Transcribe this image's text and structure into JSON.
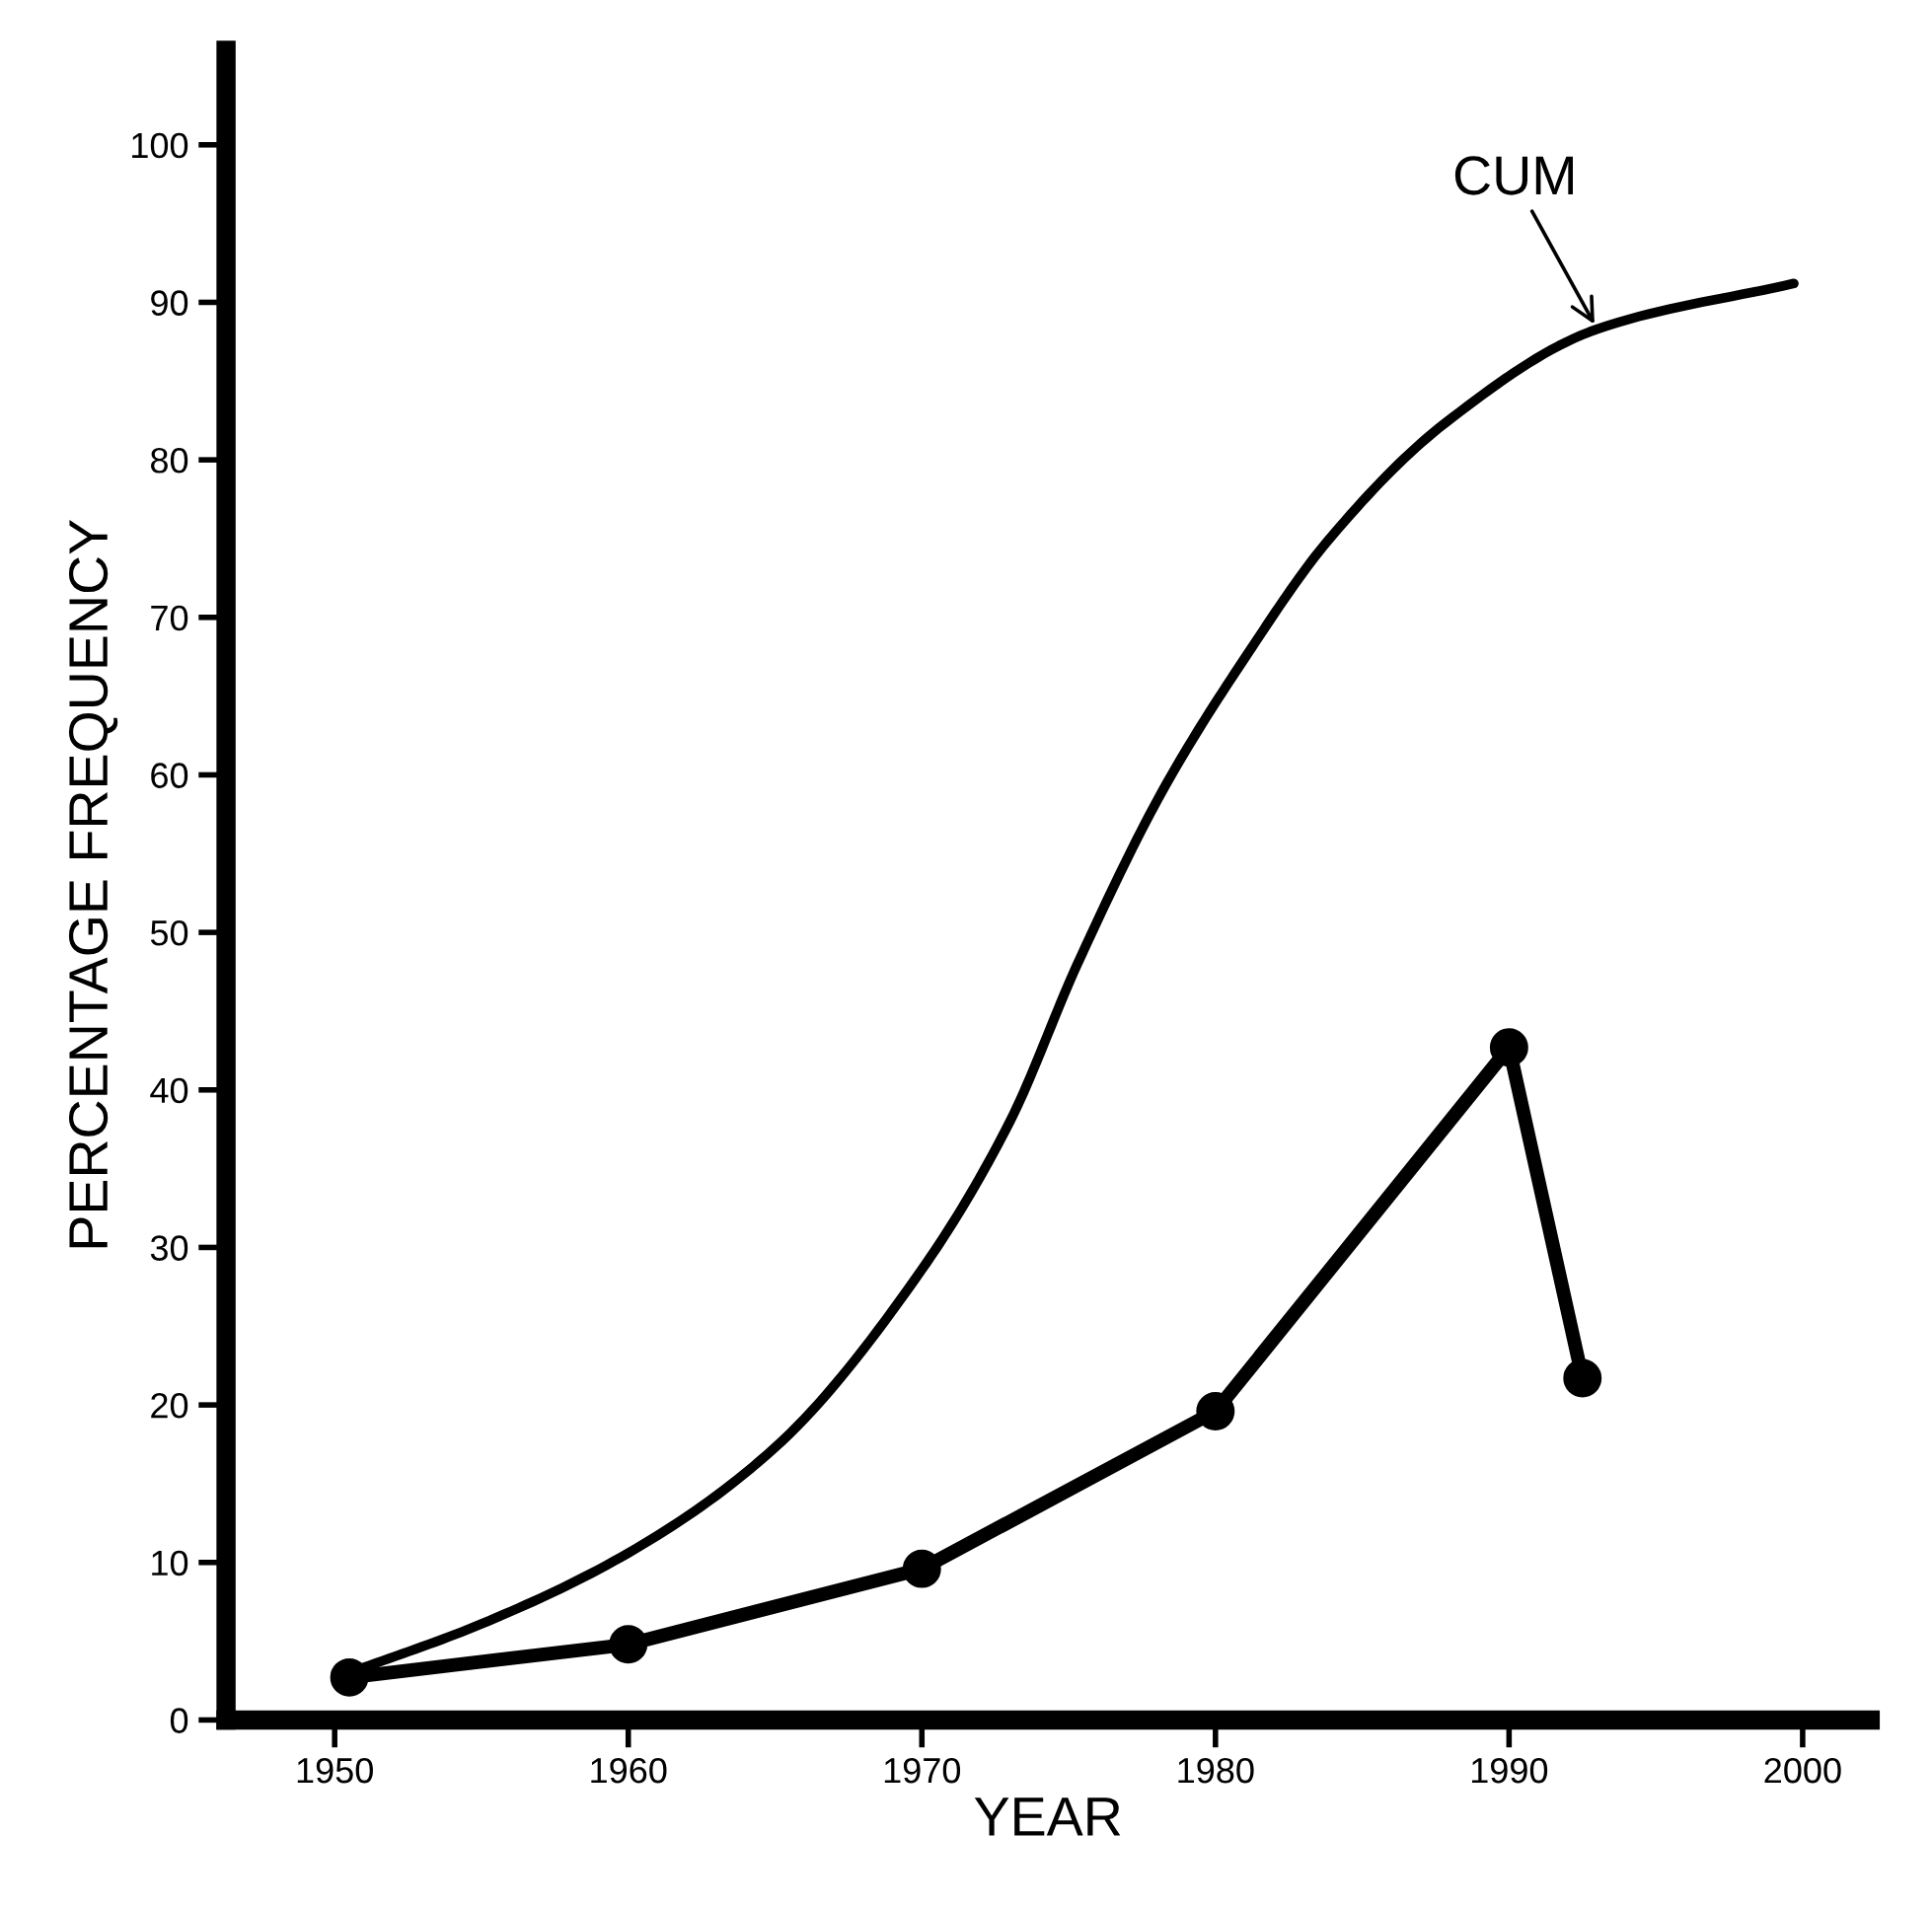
{
  "chart_data": {
    "type": "line",
    "xlabel": "YEAR",
    "ylabel": "PERCENTAGE FREQUENCY",
    "xlim": [
      1946.3,
      2002.3
    ],
    "ylim": [
      0,
      106
    ],
    "xticks": [
      1950,
      1960,
      1970,
      1980,
      1990,
      2000
    ],
    "yticks": [
      0,
      10,
      20,
      30,
      40,
      50,
      60,
      70,
      80,
      90,
      100
    ],
    "grid": false,
    "legend": false,
    "series": [
      {
        "color": "#000000",
        "marker": "none",
        "x": [
          1950.5,
          1955,
          1960,
          1965,
          1970,
          1973,
          1975.3,
          1978.2,
          1981.1,
          1983.8,
          1987.8,
          1993,
          1999.7
        ],
        "values": [
          3,
          6.1,
          10.6,
          17.3,
          28.6,
          38,
          48,
          59,
          67.7,
          74.8,
          82.3,
          88.3,
          91.2
        ]
      },
      {
        "color": "#000000",
        "marker": "circle",
        "x": [
          1950.5,
          1960,
          1970,
          1980,
          1990,
          1992.5
        ],
        "values": [
          2.7,
          4.8,
          9.6,
          19.6,
          42.7,
          21.7
        ]
      }
    ],
    "annotations": [
      {
        "text": "CUM",
        "x": 1993,
        "y": 88.3
      }
    ]
  }
}
